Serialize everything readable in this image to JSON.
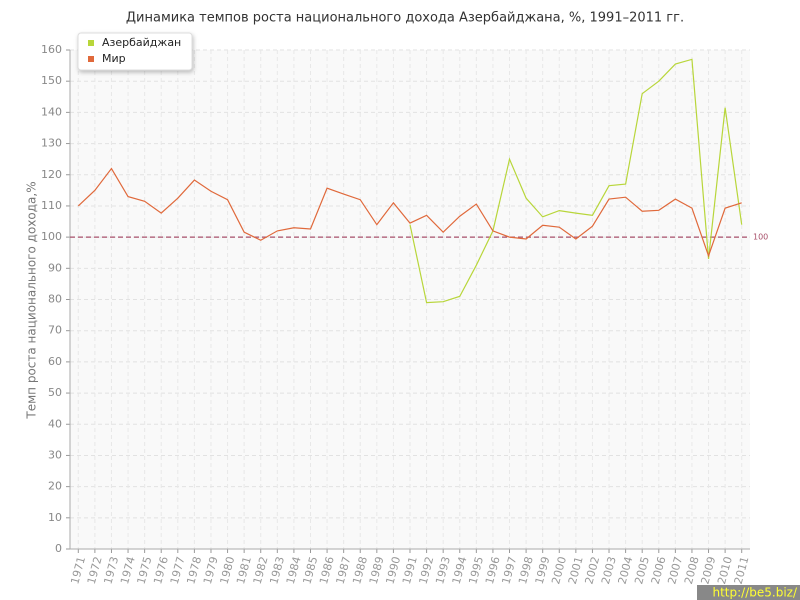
{
  "chart_data": {
    "type": "line",
    "title": "Динамика темпов роста национального дохода Азербайджана, %, 1991–2011 гг.",
    "y_label": "Темп роста национального дохода,%",
    "categories": [
      "1971",
      "1972",
      "1973",
      "1974",
      "1975",
      "1976",
      "1977",
      "1978",
      "1979",
      "1980",
      "1981",
      "1982",
      "1983",
      "1984",
      "1985",
      "1986",
      "1987",
      "1988",
      "1989",
      "1990",
      "1991",
      "1992",
      "1993",
      "1994",
      "1995",
      "1996",
      "1997",
      "1998",
      "1999",
      "2000",
      "2001",
      "2002",
      "2003",
      "2004",
      "2005",
      "2006",
      "2007",
      "2008",
      "2009",
      "2010",
      "2011"
    ],
    "series": [
      {
        "name": "Азербайджан",
        "color": "#b8d63a",
        "values": [
          null,
          null,
          null,
          null,
          null,
          null,
          null,
          null,
          null,
          null,
          null,
          null,
          null,
          null,
          null,
          null,
          null,
          null,
          null,
          null,
          104,
          79,
          79.3,
          81,
          91,
          102,
          125,
          112.5,
          106.5,
          108.5,
          107.7,
          107,
          116.5,
          117,
          146,
          150,
          155.5,
          157,
          93,
          141.5,
          104
        ]
      },
      {
        "name": "Мир",
        "color": "#e0693b",
        "values": [
          110,
          115,
          122,
          113,
          111.5,
          107.7,
          112.5,
          118.3,
          114.7,
          112,
          101.6,
          99,
          102,
          103,
          102.6,
          115.7,
          113.8,
          112,
          104,
          111,
          104.5,
          107,
          101.6,
          106.7,
          110.6,
          102,
          100,
          99.4,
          103.8,
          103.2,
          99.4,
          103.5,
          112.2,
          112.8,
          108.3,
          108.6,
          112.2,
          109.3,
          94,
          109.3,
          111
        ]
      }
    ],
    "ylim": [
      0,
      160
    ],
    "yticks": [
      0,
      10,
      20,
      30,
      40,
      50,
      60,
      70,
      80,
      90,
      100,
      110,
      120,
      130,
      140,
      150,
      160
    ],
    "grid": true,
    "legend": "top-left",
    "reference_line": 100,
    "reference_color": "#a8506a",
    "watermark": "http://be5.biz/"
  }
}
